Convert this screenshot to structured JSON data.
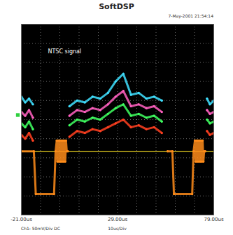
{
  "chart_data": {
    "type": "line",
    "title": "SoftDSP",
    "subtitle": "7-May-2001 21:54:14",
    "annotation": "NTSC signal",
    "xlabel": "10us/Div",
    "ylabel": "Ch1: 50mV/Div  DC",
    "xlim": [
      -21,
      79
    ],
    "ylim": [
      -250,
      250
    ],
    "xticks": [
      {
        "value": -21,
        "label": "-21.00us"
      },
      {
        "value": 29,
        "label": "29.00us"
      },
      {
        "value": 79,
        "label": "79.00us"
      }
    ],
    "x_per_div": 10,
    "y_per_div": 50,
    "reference_level": 12,
    "grid": true,
    "tick_labels": "x",
    "series": [
      {
        "color": "#e8d020",
        "x": [
          -21,
          79
        ],
        "values": [
          -83,
          -83
        ]
      },
      {
        "color": "#40e0ff",
        "x": [
          -21,
          -19,
          -17,
          -15,
          -9,
          4,
          8,
          12,
          16,
          20,
          24,
          28,
          32,
          36,
          40,
          44,
          48,
          52,
          65,
          75.5,
          77,
          79
        ],
        "values": [
          60,
          45,
          55,
          40,
          null,
          35,
          50,
          45,
          60,
          55,
          70,
          100,
          120,
          65,
          70,
          55,
          60,
          50,
          null,
          55,
          40,
          50
        ]
      },
      {
        "color": "#ff60c0",
        "x": [
          -21,
          -19,
          -17,
          -15,
          -9,
          4,
          8,
          12,
          16,
          20,
          24,
          28,
          32,
          36,
          40,
          44,
          48,
          52,
          65,
          75.5,
          77,
          79
        ],
        "values": [
          20,
          10,
          25,
          5,
          null,
          10,
          25,
          20,
          30,
          25,
          40,
          60,
          75,
          35,
          40,
          30,
          35,
          20,
          null,
          25,
          15,
          20
        ]
      },
      {
        "color": "#40ff60",
        "x": [
          -21,
          -19,
          -17,
          -15,
          -9,
          4,
          8,
          12,
          16,
          20,
          24,
          28,
          32,
          36,
          40,
          44,
          48,
          52,
          65,
          75.5,
          77,
          79
        ],
        "values": [
          -10,
          -20,
          -5,
          -25,
          null,
          -15,
          0,
          -5,
          5,
          0,
          15,
          30,
          40,
          10,
          15,
          5,
          10,
          -5,
          null,
          0,
          -10,
          -5
        ]
      },
      {
        "color": "#ff4020",
        "x": [
          -21,
          -19,
          -17,
          -15,
          -9,
          4,
          8,
          12,
          16,
          20,
          24,
          28,
          32,
          36,
          40,
          44,
          48,
          52,
          65,
          75.5,
          77,
          79
        ],
        "values": [
          -40,
          -50,
          -35,
          -55,
          null,
          -45,
          -30,
          -35,
          -25,
          -30,
          -20,
          -10,
          0,
          -20,
          -15,
          -25,
          -20,
          -35,
          null,
          -30,
          -40,
          -35
        ]
      },
      {
        "color": "#ff8c1a",
        "x": [
          -21,
          -14.5,
          -13.5,
          -4,
          -3.2,
          -2.6,
          -2.2,
          -1.8,
          -1.4,
          -1.0,
          -0.6,
          -0.2,
          0.2,
          0.6,
          1.0,
          1.4,
          1.8,
          2.2,
          2.6,
          3.2,
          30,
          55,
          57.5,
          58.3,
          67.8,
          68.5,
          69.2,
          69.6,
          70.0,
          70.4,
          70.8,
          71.2,
          71.6,
          72.0,
          72.4,
          72.8,
          73.2,
          73.6,
          74.0,
          74.6
        ],
        "values": [
          -83,
          -83,
          -195,
          -195,
          -83,
          -55,
          -110,
          -55,
          -110,
          -55,
          -110,
          -55,
          -110,
          -55,
          -110,
          -55,
          -110,
          -55,
          -83,
          -83,
          null,
          -83,
          -83,
          -195,
          -195,
          -83,
          -55,
          -110,
          -55,
          -110,
          -55,
          -110,
          -55,
          -110,
          -55,
          -110,
          -55,
          -110,
          -83,
          -83
        ]
      }
    ]
  }
}
